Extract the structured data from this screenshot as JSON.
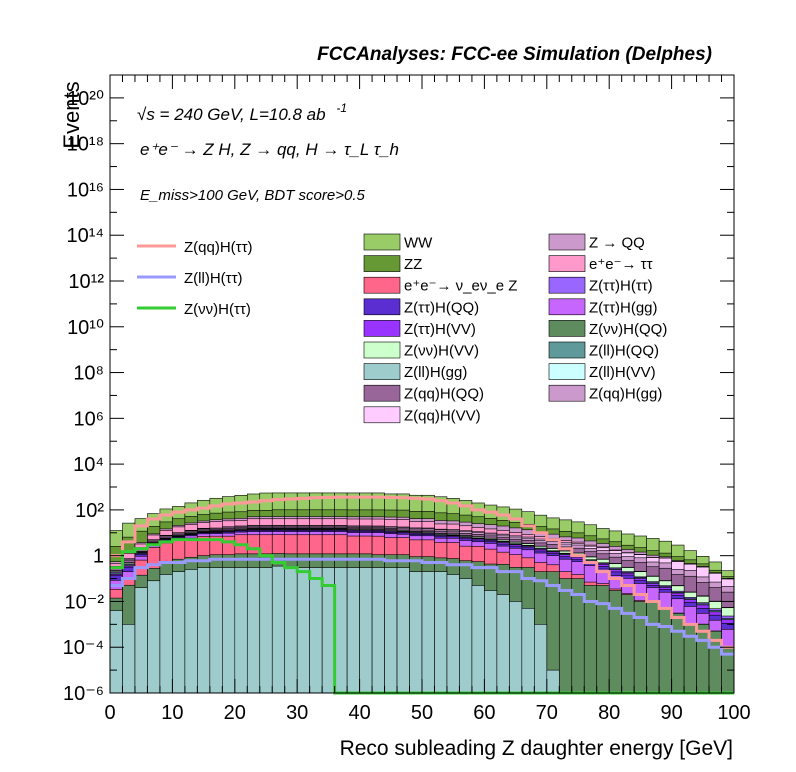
{
  "header": {
    "title": "FCCAnalyses: FCC-ee Simulation (Delphes)"
  },
  "annotations": {
    "energy_lumi": "√s = 240 GeV, L=10.8 ab",
    "lumi_exponent": "-1",
    "process": "e⁺e⁻ → Z H, Z → qq, H → τ_L τ_h",
    "cuts": "E_miss>100 GeV, BDT score>0.5"
  },
  "chart_data": {
    "type": "histogram",
    "title": "FCCAnalyses: FCC-ee Simulation (Delphes)",
    "xlabel": "Reco subleading Z daughter energy [GeV]",
    "ylabel": "Events",
    "xlim": [
      0,
      100
    ],
    "ylim": [
      1e-06,
      1e+21
    ],
    "yscale": "log",
    "bin_width": 2,
    "x_ticks": [
      0,
      10,
      20,
      30,
      40,
      50,
      60,
      70,
      80,
      90,
      100
    ],
    "y_tick_labels": [
      "10⁻⁶",
      "10⁻⁴",
      "10⁻²",
      "1",
      "10²",
      "10⁴",
      "10⁶",
      "10⁸",
      "10¹⁰",
      "10¹²",
      "10¹⁴",
      "10¹⁶",
      "10¹⁸",
      "10²⁰"
    ],
    "y_ticks_exp": [
      -6,
      -4,
      -2,
      0,
      2,
      4,
      6,
      8,
      10,
      12,
      14,
      16,
      18,
      20
    ],
    "stack_layers": [
      {
        "name": "Z(ll)H(gg)",
        "color": "#9ecccc",
        "values": [
          0.004,
          0.001,
          0.04,
          0.08,
          0.15,
          0.2,
          0.25,
          0.3,
          0.3,
          0.3,
          0.3,
          0.3,
          0.3,
          0.35,
          0.3,
          0.3,
          0.3,
          0.3,
          0.3,
          0.3,
          0.3,
          0.3,
          0.3,
          0.3,
          0.2,
          0.2,
          0.2,
          0.15,
          0.1,
          0.05,
          0.03,
          0.02,
          0.01,
          0.005,
          0.001,
          1e-05,
          1e-06,
          1e-06,
          1e-06,
          1e-06,
          1e-06,
          1e-06,
          1e-06,
          1e-06,
          1e-06,
          1e-06,
          1e-06,
          1e-06,
          1e-06,
          1e-06
        ]
      },
      {
        "name": "Z(νν)H(QQ)",
        "color": "#5e8c5e",
        "values": [
          0.01,
          0.05,
          0.1,
          0.2,
          0.4,
          0.5,
          0.6,
          0.7,
          0.8,
          0.8,
          0.9,
          0.9,
          0.9,
          0.9,
          0.9,
          0.9,
          0.9,
          0.9,
          0.9,
          0.9,
          0.9,
          0.8,
          0.8,
          0.8,
          0.7,
          0.7,
          0.6,
          0.6,
          0.5,
          0.5,
          0.4,
          0.4,
          0.3,
          0.3,
          0.2,
          0.2,
          0.1,
          0.1,
          0.05,
          0.05,
          0.03,
          0.02,
          0.01,
          0.01,
          0.005,
          0.003,
          0.001,
          0.001,
          0.0005,
          0.0001
        ]
      },
      {
        "name": "e⁺e⁻→ ν_eν_e Z",
        "color": "#ff6689",
        "values": [
          0.02,
          0.05,
          0.5,
          2,
          3,
          4,
          5,
          6,
          6,
          6,
          7,
          7,
          7,
          7,
          7,
          7,
          7,
          7,
          7,
          6,
          6,
          6,
          5,
          5,
          4,
          4,
          3,
          3,
          2,
          2,
          1.5,
          1,
          0.8,
          0.5,
          0.3,
          0.2,
          0.1,
          0.05,
          0.02,
          0.01,
          0.005,
          0.002,
          0.001,
          0.0005,
          0.0002,
          0.0001,
          5e-05,
          2e-05,
          1e-05,
          5e-06
        ]
      },
      {
        "name": "Z(ττ)H(gg)",
        "color": "#c666ff",
        "values": [
          0.05,
          0.1,
          0.3,
          0.5,
          0.8,
          1,
          1.5,
          2,
          2,
          2.5,
          2.5,
          3,
          3,
          3,
          3,
          3,
          3,
          3,
          3,
          3,
          3,
          3,
          3,
          2.5,
          2.5,
          2.5,
          2,
          2,
          2,
          1.5,
          1.5,
          1.2,
          1,
          1,
          0.8,
          0.6,
          0.5,
          0.4,
          0.3,
          0.2,
          0.1,
          0.08,
          0.05,
          0.03,
          0.02,
          0.01,
          0.005,
          0.002,
          0.001,
          0.0005
        ]
      },
      {
        "name": "Z(ττ)H(QQ)",
        "color": "#5a2ed1",
        "values": [
          0.05,
          0.1,
          0.2,
          0.3,
          0.5,
          0.6,
          0.8,
          1,
          1,
          1.2,
          1.3,
          1.5,
          1.5,
          1.5,
          1.5,
          1.5,
          1.5,
          1.5,
          1.5,
          1.5,
          1.5,
          1.5,
          1.4,
          1.3,
          1.2,
          1.1,
          1,
          1,
          0.9,
          0.8,
          0.7,
          0.6,
          0.5,
          0.4,
          0.3,
          0.25,
          0.2,
          0.15,
          0.1,
          0.08,
          0.06,
          0.04,
          0.02,
          0.01,
          0.008,
          0.005,
          0.003,
          0.002,
          0.001,
          0.0005
        ]
      },
      {
        "name": "Z(ττ)H(VV)",
        "color": "#9933ff",
        "values": [
          0.02,
          0.05,
          0.1,
          0.2,
          0.3,
          0.4,
          0.5,
          0.6,
          0.7,
          0.8,
          0.9,
          1,
          1,
          1,
          1,
          1,
          1,
          1,
          1,
          1,
          1,
          1,
          1,
          0.9,
          0.9,
          0.8,
          0.8,
          0.7,
          0.7,
          0.6,
          0.5,
          0.5,
          0.4,
          0.3,
          0.3,
          0.2,
          0.2,
          0.15,
          0.1,
          0.08,
          0.05,
          0.03,
          0.02,
          0.01,
          0.008,
          0.005,
          0.003,
          0.002,
          0.001,
          0.0005
        ]
      },
      {
        "name": "Z(ll)H(QQ)",
        "color": "#5f9999",
        "values": [
          0.02,
          0.04,
          0.08,
          0.15,
          0.2,
          0.3,
          0.4,
          0.5,
          0.5,
          0.6,
          0.6,
          0.7,
          0.7,
          0.7,
          0.7,
          0.7,
          0.7,
          0.7,
          0.7,
          0.7,
          0.7,
          0.6,
          0.6,
          0.6,
          0.5,
          0.5,
          0.5,
          0.4,
          0.4,
          0.3,
          0.3,
          0.3,
          0.2,
          0.2,
          0.15,
          0.1,
          0.1,
          0.08,
          0.05,
          0.03,
          0.02,
          0.01,
          0.008,
          0.005,
          0.003,
          0.002,
          0.001,
          0.0008,
          0.0005,
          0.0002
        ]
      },
      {
        "name": "Z(ττ)H(ττ)",
        "color": "#9966ff",
        "values": [
          0.02,
          0.04,
          0.08,
          0.1,
          0.15,
          0.2,
          0.25,
          0.3,
          0.3,
          0.35,
          0.35,
          0.4,
          0.4,
          0.4,
          0.4,
          0.4,
          0.4,
          0.4,
          0.4,
          0.4,
          0.4,
          0.4,
          0.35,
          0.35,
          0.3,
          0.3,
          0.3,
          0.25,
          0.25,
          0.2,
          0.2,
          0.2,
          0.15,
          0.15,
          0.1,
          0.1,
          0.08,
          0.06,
          0.05,
          0.04,
          0.03,
          0.02,
          0.01,
          0.008,
          0.005,
          0.003,
          0.002,
          0.001,
          0.0008,
          0.0005
        ]
      },
      {
        "name": "Z(νν)H(VV)",
        "color": "#ccffcc",
        "values": [
          0.02,
          0.05,
          0.1,
          0.2,
          0.3,
          0.4,
          0.5,
          0.6,
          0.7,
          0.8,
          0.9,
          1,
          1,
          1,
          1,
          1,
          1,
          1,
          1,
          1,
          1,
          1,
          1,
          1,
          0.9,
          0.9,
          0.8,
          0.8,
          0.7,
          0.7,
          0.6,
          0.6,
          0.5,
          0.5,
          0.4,
          0.4,
          0.3,
          0.3,
          0.2,
          0.2,
          0.15,
          0.1,
          0.08,
          0.05,
          0.03,
          0.02,
          0.01,
          0.008,
          0.005,
          0.003
        ]
      },
      {
        "name": "Z(ll)H(VV)",
        "color": "#ccffff",
        "values": [
          0.01,
          0.02,
          0.04,
          0.06,
          0.08,
          0.1,
          0.12,
          0.15,
          0.15,
          0.18,
          0.2,
          0.2,
          0.2,
          0.2,
          0.2,
          0.2,
          0.2,
          0.2,
          0.2,
          0.2,
          0.2,
          0.2,
          0.2,
          0.18,
          0.17,
          0.16,
          0.15,
          0.14,
          0.13,
          0.12,
          0.1,
          0.1,
          0.08,
          0.07,
          0.06,
          0.05,
          0.04,
          0.03,
          0.025,
          0.02,
          0.015,
          0.01,
          0.008,
          0.005,
          0.003,
          0.002,
          0.001,
          0.0008,
          0.0005,
          0.0002
        ]
      },
      {
        "name": "Z(qq)H(QQ)",
        "color": "#996699",
        "values": [
          0.05,
          0.1,
          0.3,
          0.5,
          0.8,
          1,
          1.2,
          1.5,
          1.5,
          2,
          2,
          2,
          2,
          2,
          2,
          2,
          2,
          2,
          2,
          2,
          2,
          2,
          2,
          2,
          2,
          2,
          2,
          2,
          1.8,
          1.8,
          1.5,
          1.5,
          1.3,
          1.2,
          1,
          1,
          0.8,
          0.8,
          0.6,
          0.5,
          0.4,
          0.3,
          0.3,
          0.2,
          0.2,
          0.1,
          0.1,
          0.05,
          0.03,
          0.02
        ]
      },
      {
        "name": "Z(qq)H(gg)",
        "color": "#cc99cc",
        "values": [
          0.05,
          0.1,
          0.3,
          0.5,
          0.8,
          1,
          1.2,
          1.5,
          1.5,
          2,
          2,
          2,
          2,
          2,
          2,
          2,
          2,
          2,
          2,
          2,
          2,
          2,
          2,
          2,
          2,
          2,
          2,
          2,
          1.8,
          1.8,
          1.5,
          1.5,
          1.3,
          1.2,
          1,
          1,
          0.8,
          0.8,
          0.6,
          0.5,
          0.4,
          0.3,
          0.3,
          0.2,
          0.2,
          0.1,
          0.1,
          0.05,
          0.03,
          0.02
        ]
      },
      {
        "name": "Z(qq)H(VV)",
        "color": "#ffccff",
        "values": [
          0.02,
          0.05,
          0.1,
          0.2,
          0.3,
          0.4,
          0.5,
          0.6,
          0.7,
          0.8,
          0.9,
          1,
          1,
          1,
          1,
          1,
          1,
          1,
          1,
          1,
          1,
          1,
          1,
          1,
          1,
          1,
          1,
          1,
          1,
          0.9,
          0.9,
          0.8,
          0.8,
          0.7,
          0.7,
          0.6,
          0.6,
          0.5,
          0.5,
          0.5,
          0.4,
          0.4,
          0.3,
          0.3,
          0.3,
          0.3,
          0.2,
          0.2,
          0.1,
          0.05
        ]
      },
      {
        "name": "e⁺e⁻→ ττ",
        "color": "#ff99cc",
        "values": [
          0.1,
          0.5,
          1,
          3,
          5,
          8,
          10,
          12,
          15,
          15,
          15,
          20,
          20,
          20,
          20,
          20,
          20,
          20,
          20,
          20,
          20,
          20,
          20,
          20,
          15,
          15,
          10,
          10,
          8,
          6,
          5,
          4,
          3,
          2,
          1.5,
          1,
          0.8,
          0.5,
          0.3,
          0.2,
          0.1,
          0.05,
          0.03,
          0.02,
          0.01,
          0.005,
          0.002,
          0.001,
          0.0005,
          0.0002
        ]
      },
      {
        "name": "Z → QQ",
        "color": "#cc99cc",
        "values": [
          0.1,
          0.2,
          0.5,
          1,
          2,
          3,
          4,
          5,
          6,
          7,
          8,
          9,
          10,
          10,
          10,
          10,
          10,
          10,
          10,
          10,
          10,
          10,
          10,
          10,
          10,
          10,
          10,
          9,
          9,
          8,
          8,
          7,
          6,
          5,
          4,
          3,
          2,
          2,
          1.5,
          1,
          0.8,
          0.5,
          0.3,
          0.2,
          0.1,
          0.05,
          0.03,
          0.02,
          0.01,
          0.005
        ]
      },
      {
        "name": "ZZ",
        "color": "#669933",
        "values": [
          2,
          5,
          8,
          10,
          15,
          20,
          25,
          30,
          35,
          40,
          40,
          45,
          45,
          50,
          50,
          50,
          50,
          50,
          50,
          50,
          50,
          50,
          50,
          50,
          45,
          45,
          40,
          35,
          30,
          25,
          20,
          15,
          12,
          10,
          8,
          6,
          5,
          4,
          3,
          2,
          1.5,
          1,
          0.8,
          0.6,
          0.4,
          0.3,
          0.2,
          0.1,
          0.05,
          0.02
        ]
      },
      {
        "name": "WW",
        "color": "#99cc66",
        "values": [
          10,
          20,
          30,
          50,
          80,
          100,
          150,
          200,
          250,
          300,
          350,
          400,
          450,
          450,
          450,
          450,
          450,
          450,
          450,
          450,
          450,
          450,
          400,
          400,
          350,
          350,
          300,
          250,
          200,
          150,
          120,
          100,
          80,
          60,
          40,
          30,
          25,
          20,
          15,
          10,
          8,
          6,
          5,
          4,
          3,
          2,
          1,
          0.5,
          0.3,
          0.1
        ]
      }
    ],
    "signal_lines": [
      {
        "name": "Z(qq)H(ττ)",
        "color": "#ff9999",
        "values": [
          1,
          4,
          20,
          40,
          60,
          80,
          100,
          120,
          150,
          180,
          200,
          220,
          250,
          280,
          300,
          320,
          340,
          350,
          360,
          360,
          360,
          360,
          350,
          340,
          320,
          300,
          250,
          200,
          150,
          100,
          80,
          60,
          40,
          20,
          10,
          5,
          2,
          1,
          0.5,
          0.2,
          0.1,
          0.05,
          0.02,
          0.01,
          0.005,
          0.002,
          0.001,
          0.0005,
          0.0002,
          0.0001
        ]
      },
      {
        "name": "Z(ll)H(ττ)",
        "color": "#9999ff",
        "values": [
          0.05,
          0.1,
          0.3,
          0.4,
          0.5,
          0.5,
          0.6,
          0.6,
          0.7,
          0.7,
          0.7,
          0.7,
          0.7,
          0.7,
          0.7,
          0.7,
          0.7,
          0.7,
          0.7,
          0.7,
          0.7,
          0.7,
          0.6,
          0.6,
          0.6,
          0.5,
          0.5,
          0.4,
          0.4,
          0.3,
          0.3,
          0.2,
          0.2,
          0.1,
          0.08,
          0.05,
          0.03,
          0.02,
          0.01,
          0.008,
          0.005,
          0.003,
          0.002,
          0.001,
          0.0008,
          0.0005,
          0.0003,
          0.0002,
          0.0001,
          5e-05
        ]
      },
      {
        "name": "Z(νν)H(ττ)",
        "color": "#33cc33",
        "values": [
          0.3,
          1.5,
          2,
          3,
          4,
          5,
          5,
          5,
          5,
          4,
          3,
          2,
          1,
          0.5,
          0.3,
          0.2,
          0.1,
          0.05,
          1e-06,
          1e-06,
          1e-06,
          1e-06,
          1e-06,
          1e-06,
          1e-06,
          1e-06,
          1e-06,
          1e-06,
          1e-06,
          1e-06,
          1e-06,
          1e-06,
          1e-06,
          1e-06,
          1e-06,
          1e-06,
          1e-06,
          1e-06,
          1e-06,
          1e-06,
          1e-06,
          1e-06,
          1e-06,
          1e-06,
          1e-06,
          1e-06,
          1e-06,
          1e-06,
          1e-06,
          1e-06
        ]
      }
    ],
    "legend_signal": [
      "Z(qq)H(ττ)",
      "Z(ll)H(ττ)",
      "Z(νν)H(ττ)"
    ],
    "legend_background_col1": [
      "WW",
      "ZZ",
      "e⁺e⁻→ ν_eν_e Z",
      "Z(ττ)H(QQ)",
      "Z(ττ)H(VV)",
      "Z(νν)H(VV)",
      "Z(ll)H(gg)",
      "Z(qq)H(QQ)",
      "Z(qq)H(VV)"
    ],
    "legend_background_col2": [
      "Z → QQ",
      "e⁺e⁻→ ττ",
      "Z(ττ)H(ττ)",
      "Z(ττ)H(gg)",
      "Z(νν)H(QQ)",
      "Z(ll)H(QQ)",
      "Z(ll)H(VV)",
      "Z(qq)H(gg)"
    ],
    "legend_colors": {
      "WW": "#99cc66",
      "ZZ": "#669933",
      "e⁺e⁻→ ν_eν_e Z": "#ff6689",
      "Z(ττ)H(QQ)": "#5a2ed1",
      "Z(ττ)H(VV)": "#9933ff",
      "Z(νν)H(VV)": "#ccffcc",
      "Z(ll)H(gg)": "#9ecccc",
      "Z(qq)H(QQ)": "#996699",
      "Z(qq)H(VV)": "#ffccff",
      "Z → QQ": "#cc99cc",
      "e⁺e⁻→ ττ": "#ff99cc",
      "Z(ττ)H(ττ)": "#9966ff",
      "Z(ττ)H(gg)": "#c666ff",
      "Z(νν)H(QQ)": "#5e8c5e",
      "Z(ll)H(QQ)": "#5f9999",
      "Z(ll)H(VV)": "#ccffff",
      "Z(qq)H(gg)": "#cc99cc",
      "Z(qq)H(ττ)": "#ff9999",
      "Z(ll)H(ττ)": "#9999ff",
      "Z(νν)H(ττ)": "#33cc33"
    }
  }
}
